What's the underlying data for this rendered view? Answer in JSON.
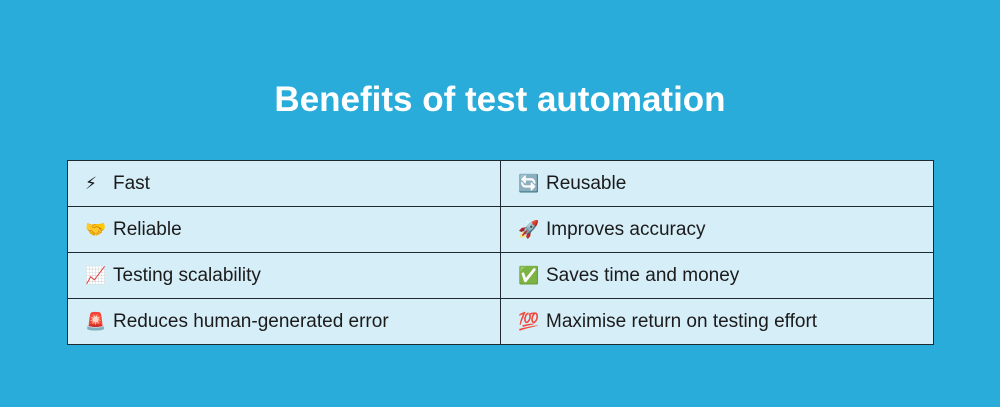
{
  "title": "Benefits of test automation",
  "rows": [
    [
      {
        "icon": "⚡",
        "icon_name": "lightning-icon",
        "label": "Fast"
      },
      {
        "icon": "🔄",
        "icon_name": "arrows-cycle-icon",
        "label": "Reusable"
      }
    ],
    [
      {
        "icon": "🤝",
        "icon_name": "handshake-icon",
        "label": "Reliable"
      },
      {
        "icon": "🚀",
        "icon_name": "rocket-icon",
        "label": "Improves accuracy"
      }
    ],
    [
      {
        "icon": "📈",
        "icon_name": "chart-increasing-icon",
        "label": "Testing scalability"
      },
      {
        "icon": "✅",
        "icon_name": "check-mark-icon",
        "label": "Saves time and money"
      }
    ],
    [
      {
        "icon": "🚨",
        "icon_name": "siren-icon",
        "label": "Reduces human-generated error"
      },
      {
        "icon": "💯",
        "icon_name": "hundred-points-icon",
        "label": "Maximise return on testing effort"
      }
    ]
  ],
  "colors": {
    "background": "#29acd9",
    "cell": "#d6eef8",
    "title": "#ffffff"
  }
}
